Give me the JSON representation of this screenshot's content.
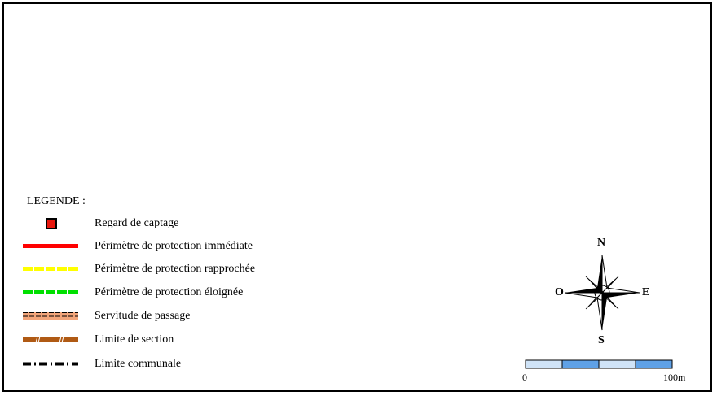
{
  "legend": {
    "title": "LEGENDE :",
    "items": [
      {
        "label": "Regard de captage",
        "symbol": "red-square",
        "color": "#e8170e"
      },
      {
        "label": "Périmètre de protection immédiate",
        "symbol": "dashed-line",
        "color": "#ff0000"
      },
      {
        "label": "Périmètre de protection rapprochée",
        "symbol": "dashed-line",
        "color": "#ffff00"
      },
      {
        "label": "Périmètre de protection éloignée",
        "symbol": "dashed-line",
        "color": "#00e000"
      },
      {
        "label": "Servitude de passage",
        "symbol": "hatched-band",
        "color": "#f2a57a"
      },
      {
        "label": "Limite de section",
        "symbol": "dashed-line",
        "color": "#b05a14"
      },
      {
        "label": "Limite communale",
        "symbol": "dash-dot-line",
        "color": "#000000"
      }
    ]
  },
  "compass": {
    "north": "N",
    "south": "S",
    "east": "E",
    "west": "O"
  },
  "scale": {
    "start": "0",
    "end": "100m",
    "colors": [
      "#cfe3f7",
      "#5fa1e6"
    ]
  }
}
